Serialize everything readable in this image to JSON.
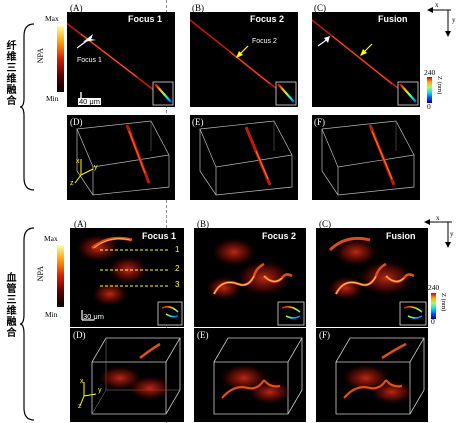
{
  "top": {
    "section_label": "纤维三维融合",
    "colorbar": {
      "max": "Max",
      "min": "Min",
      "axis": "NPA"
    },
    "scale_bar": "40 μm",
    "axis_x": "x",
    "axis_y": "y",
    "depth_bar": {
      "top": "240",
      "bottom": "0",
      "unit": "Z (nm)"
    },
    "panels": [
      {
        "letter": "(A)",
        "title": "Focus 1",
        "annotation": "Focus 1"
      },
      {
        "letter": "(B)",
        "title": "Focus 2",
        "annotation": "Focus 2"
      },
      {
        "letter": "(C)",
        "title": "Fusion",
        "annotation": ""
      }
    ],
    "panels_3d": [
      {
        "letter": "(D)"
      },
      {
        "letter": "(E)"
      },
      {
        "letter": "(F)"
      }
    ],
    "axes3d": {
      "x": "x",
      "y": "y",
      "z": "z"
    }
  },
  "bottom": {
    "section_label": "血管三维融合",
    "colorbar": {
      "max": "Max",
      "min": "Min",
      "axis": "NPA"
    },
    "scale_bar": "30 μm",
    "axis_x": "x",
    "axis_y": "y",
    "depth_bar": {
      "top": "240",
      "bottom": "0",
      "unit": "Z (nm)"
    },
    "lines": [
      "1",
      "2",
      "3"
    ],
    "panels": [
      {
        "letter": "(A)",
        "title": "Focus 1"
      },
      {
        "letter": "(B)",
        "title": "Focus 2"
      },
      {
        "letter": "(C)",
        "title": "Fusion"
      }
    ],
    "panels_3d": [
      {
        "letter": "(D)"
      },
      {
        "letter": "(E)"
      },
      {
        "letter": "(F)"
      }
    ],
    "axes3d": {
      "x": "x",
      "y": "y",
      "z": "z"
    }
  },
  "colors": {
    "accent_arrow": "#ffff00",
    "line_dashed": "#ffff33",
    "box": "#cccccc"
  }
}
